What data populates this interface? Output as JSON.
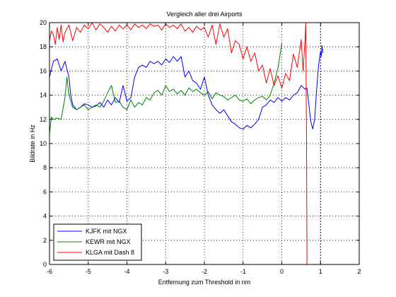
{
  "chart_data": {
    "type": "line",
    "title": "Vergleich aller drei Airports",
    "xlabel": "Entfernung zum Threshold in nm",
    "ylabel": "Bildrate in Hz",
    "xlim": [
      -6,
      2
    ],
    "ylim": [
      0,
      20
    ],
    "xticks": [
      -6,
      -5,
      -4,
      -3,
      -2,
      -1,
      0,
      1,
      2
    ],
    "yticks": [
      0,
      2,
      4,
      6,
      8,
      10,
      12,
      14,
      16,
      18,
      20
    ],
    "grid": true,
    "legend_position": "bottom-left",
    "series": [
      {
        "name": "KJFK mit NGX",
        "color": "#0000ff",
        "x": [
          -6.0,
          -5.9,
          -5.8,
          -5.7,
          -5.6,
          -5.5,
          -5.45,
          -5.4,
          -5.3,
          -5.2,
          -5.1,
          -5.0,
          -4.9,
          -4.8,
          -4.7,
          -4.6,
          -4.5,
          -4.4,
          -4.3,
          -4.2,
          -4.1,
          -4.0,
          -3.9,
          -3.8,
          -3.7,
          -3.6,
          -3.5,
          -3.4,
          -3.3,
          -3.2,
          -3.1,
          -3.0,
          -2.9,
          -2.8,
          -2.7,
          -2.6,
          -2.5,
          -2.4,
          -2.3,
          -2.2,
          -2.1,
          -2.0,
          -1.9,
          -1.8,
          -1.7,
          -1.6,
          -1.5,
          -1.4,
          -1.3,
          -1.2,
          -1.1,
          -1.0,
          -0.9,
          -0.8,
          -0.7,
          -0.6,
          -0.5,
          -0.4,
          -0.3,
          -0.2,
          -0.1,
          0.0,
          0.1,
          0.2,
          0.3,
          0.4,
          0.5,
          0.6,
          0.65,
          0.7,
          0.75,
          0.8,
          0.85,
          0.9,
          0.95,
          1.0,
          1.02,
          1.04,
          1.06
        ],
        "y": [
          15.5,
          16.8,
          17.0,
          16.0,
          16.8,
          15.5,
          14.0,
          13.2,
          12.8,
          13.0,
          13.3,
          13.2,
          13.0,
          13.1,
          13.4,
          13.0,
          13.6,
          13.2,
          13.8,
          13.4,
          14.8,
          13.5,
          13.8,
          15.5,
          16.3,
          16.5,
          16.3,
          16.8,
          16.6,
          16.8,
          16.5,
          17.0,
          16.7,
          17.2,
          16.8,
          17.2,
          15.5,
          16.0,
          15.2,
          15.0,
          14.5,
          15.5,
          14.0,
          13.2,
          12.8,
          12.5,
          12.8,
          12.3,
          11.8,
          11.6,
          11.3,
          11.2,
          11.5,
          11.3,
          11.6,
          12.0,
          13.0,
          13.2,
          13.6,
          13.4,
          13.8,
          13.5,
          13.8,
          13.6,
          14.0,
          14.2,
          14.8,
          14.5,
          14.6,
          13.2,
          11.8,
          11.2,
          12.0,
          14.5,
          16.5,
          17.6,
          17.2,
          18.1,
          17.5
        ]
      },
      {
        "name": "KEWR mit NGX",
        "color": "#008000",
        "x": [
          -6.0,
          -5.95,
          -5.9,
          -5.8,
          -5.7,
          -5.6,
          -5.55,
          -5.5,
          -5.4,
          -5.3,
          -5.2,
          -5.1,
          -5.0,
          -4.9,
          -4.8,
          -4.7,
          -4.6,
          -4.5,
          -4.4,
          -4.3,
          -4.2,
          -4.1,
          -4.0,
          -3.9,
          -3.8,
          -3.7,
          -3.6,
          -3.5,
          -3.4,
          -3.3,
          -3.2,
          -3.1,
          -3.0,
          -2.9,
          -2.8,
          -2.7,
          -2.6,
          -2.5,
          -2.4,
          -2.3,
          -2.2,
          -2.1,
          -2.0,
          -1.9,
          -1.8,
          -1.7,
          -1.6,
          -1.5,
          -1.4,
          -1.3,
          -1.2,
          -1.1,
          -1.0,
          -0.9,
          -0.8,
          -0.7,
          -0.6,
          -0.5,
          -0.4,
          -0.3,
          -0.2,
          -0.1,
          0.0
        ],
        "y": [
          10.8,
          12.2,
          12.0,
          12.1,
          12.0,
          13.8,
          15.5,
          14.0,
          13.0,
          12.8,
          13.0,
          13.2,
          12.8,
          13.0,
          13.2,
          13.0,
          13.5,
          14.2,
          14.8,
          13.4,
          13.5,
          13.0,
          12.8,
          13.6,
          13.0,
          13.4,
          13.2,
          13.8,
          13.6,
          14.2,
          14.4,
          14.0,
          14.8,
          14.3,
          14.5,
          14.1,
          14.4,
          14.0,
          14.6,
          14.3,
          14.5,
          14.2,
          14.0,
          14.3,
          13.7,
          14.2,
          14.0,
          13.9,
          13.6,
          13.8,
          14.0,
          13.6,
          13.5,
          13.7,
          13.3,
          13.6,
          13.8,
          13.9,
          13.6,
          14.0,
          15.0,
          16.2,
          18.3
        ]
      },
      {
        "name": "KLGA mit Dash 8",
        "color": "#ff0000",
        "x": [
          -6.0,
          -5.95,
          -5.9,
          -5.85,
          -5.8,
          -5.75,
          -5.7,
          -5.65,
          -5.6,
          -5.5,
          -5.4,
          -5.3,
          -5.2,
          -5.1,
          -5.0,
          -4.9,
          -4.8,
          -4.7,
          -4.6,
          -4.5,
          -4.4,
          -4.3,
          -4.2,
          -4.1,
          -4.0,
          -3.9,
          -3.8,
          -3.7,
          -3.6,
          -3.5,
          -3.4,
          -3.3,
          -3.2,
          -3.1,
          -3.0,
          -2.9,
          -2.8,
          -2.7,
          -2.6,
          -2.5,
          -2.4,
          -2.3,
          -2.2,
          -2.1,
          -2.0,
          -1.9,
          -1.8,
          -1.7,
          -1.6,
          -1.5,
          -1.4,
          -1.3,
          -1.2,
          -1.1,
          -1.0,
          -0.9,
          -0.8,
          -0.7,
          -0.6,
          -0.5,
          -0.4,
          -0.3,
          -0.2,
          -0.1,
          0.0,
          0.1,
          0.2,
          0.3,
          0.4,
          0.5,
          0.55,
          0.6,
          0.62,
          0.63,
          0.64,
          0.65
        ],
        "y": [
          18.5,
          19.3,
          19.0,
          18.2,
          19.6,
          18.6,
          19.8,
          18.4,
          19.2,
          19.8,
          18.5,
          19.6,
          19.2,
          19.8,
          19.5,
          20.0,
          19.4,
          19.9,
          19.6,
          19.2,
          19.7,
          19.3,
          19.8,
          19.5,
          19.8,
          19.4,
          19.9,
          19.6,
          19.8,
          19.5,
          19.9,
          19.7,
          19.8,
          19.4,
          19.9,
          19.6,
          19.8,
          19.5,
          19.9,
          19.3,
          19.6,
          19.2,
          19.7,
          19.4,
          19.6,
          18.8,
          19.8,
          18.2,
          19.9,
          18.8,
          19.5,
          17.5,
          18.5,
          18.2,
          17.0,
          18.0,
          16.8,
          17.5,
          16.0,
          16.5,
          15.0,
          16.2,
          14.8,
          15.6,
          14.6,
          15.8,
          15.2,
          17.4,
          16.3,
          18.6,
          16.0,
          18.5,
          20.0,
          14.0,
          10.0,
          0.0
        ]
      },
      {
        "name": "",
        "color": "#0000ff",
        "dashed": true,
        "x": [
          1.0,
          1.0
        ],
        "y": [
          0,
          20
        ]
      }
    ]
  }
}
